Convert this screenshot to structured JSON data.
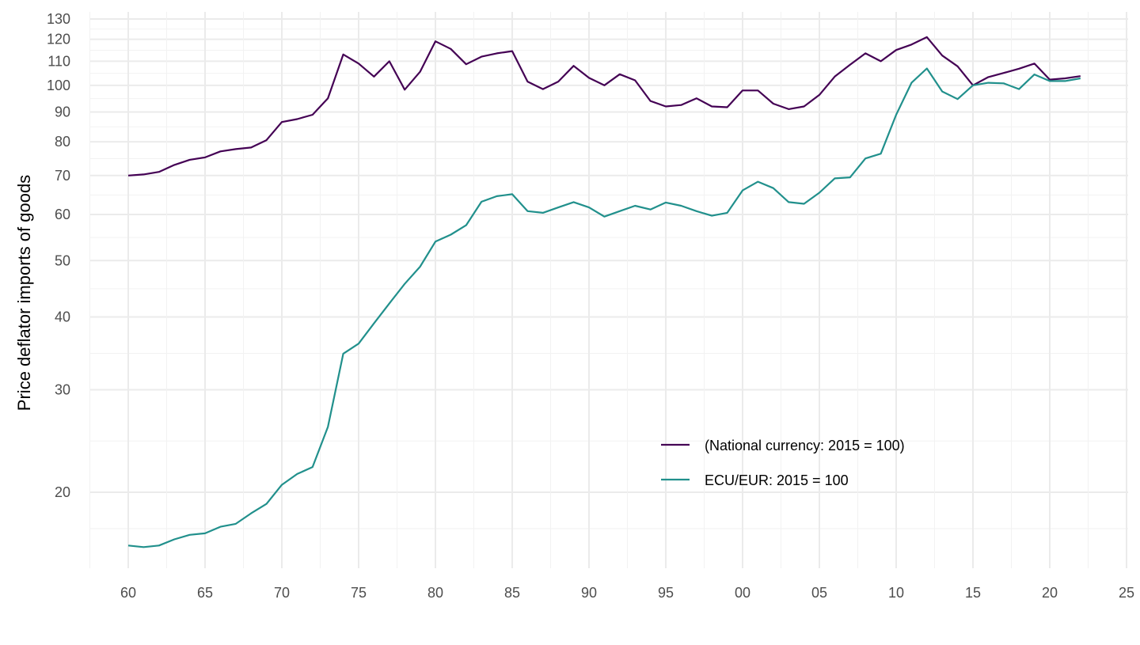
{
  "chart_data": {
    "type": "line",
    "title": "",
    "xlabel": "",
    "ylabel": "Price deflator imports of goods",
    "y_scale": "log",
    "ylim": [
      14.5,
      133
    ],
    "xlim": [
      1957.5,
      2025
    ],
    "y_ticks": [
      20,
      30,
      40,
      50,
      60,
      70,
      80,
      90,
      100,
      110,
      120,
      130
    ],
    "x_ticks": [
      1960,
      1965,
      1970,
      1975,
      1980,
      1985,
      1990,
      1995,
      2000,
      2005,
      2010,
      2015,
      2020,
      2025
    ],
    "x_tick_labels": [
      "60",
      "65",
      "70",
      "75",
      "80",
      "85",
      "90",
      "95",
      "00",
      "05",
      "10",
      "15",
      "20",
      "25"
    ],
    "grid": true,
    "legend_position": "bottom-right-inside",
    "x": [
      1960,
      1961,
      1962,
      1963,
      1964,
      1965,
      1966,
      1967,
      1968,
      1969,
      1970,
      1971,
      1972,
      1973,
      1974,
      1975,
      1976,
      1977,
      1978,
      1979,
      1980,
      1981,
      1982,
      1983,
      1984,
      1985,
      1986,
      1987,
      1988,
      1989,
      1990,
      1991,
      1992,
      1993,
      1994,
      1995,
      1996,
      1997,
      1998,
      1999,
      2000,
      2001,
      2002,
      2003,
      2004,
      2005,
      2006,
      2007,
      2008,
      2009,
      2010,
      2011,
      2012,
      2013,
      2014,
      2015,
      2016,
      2017,
      2018,
      2019,
      2020,
      2021,
      2022
    ],
    "series": [
      {
        "name": "(National currency: 2015 = 100)",
        "color": "#440154",
        "values": [
          70,
          70.3,
          71,
          73,
          74.5,
          75.2,
          77,
          77.7,
          78.2,
          80.5,
          86.5,
          87.5,
          89,
          95,
          113,
          109,
          103.5,
          110,
          98.3,
          105.5,
          119,
          115.5,
          108.7,
          112,
          113.5,
          114.5,
          101.5,
          98.5,
          101.5,
          108,
          103,
          100,
          104.5,
          102,
          94,
          92,
          92.5,
          95,
          92,
          91.7,
          98,
          98,
          93,
          91,
          92,
          96.3,
          103.5,
          108.5,
          113.5,
          110,
          115,
          117.5,
          121,
          112.5,
          107.8,
          100,
          103.3,
          105,
          106.8,
          109,
          102.3,
          102.8,
          103.7
        ]
      },
      {
        "name": "ECU/EUR: 2015 = 100",
        "color": "#21908C",
        "values": [
          16.2,
          16.1,
          16.2,
          16.6,
          16.9,
          17.0,
          17.45,
          17.65,
          18.4,
          19.1,
          20.6,
          21.5,
          22.1,
          25.9,
          34.6,
          36,
          39,
          42.2,
          45.6,
          48.8,
          53.9,
          55.4,
          57.5,
          63.1,
          64.5,
          65,
          60.8,
          60.4,
          61.7,
          63,
          61.7,
          59.5,
          60.8,
          62.1,
          61.2,
          62.9,
          62.1,
          60.8,
          59.7,
          60.4,
          66,
          68.3,
          66.6,
          63,
          62.6,
          65.4,
          69.2,
          69.5,
          74.9,
          76.3,
          89,
          101,
          106.9,
          97.6,
          94.7,
          100,
          101,
          100.8,
          98.5,
          104.4,
          101.7,
          101.7,
          102.8
        ]
      }
    ]
  }
}
